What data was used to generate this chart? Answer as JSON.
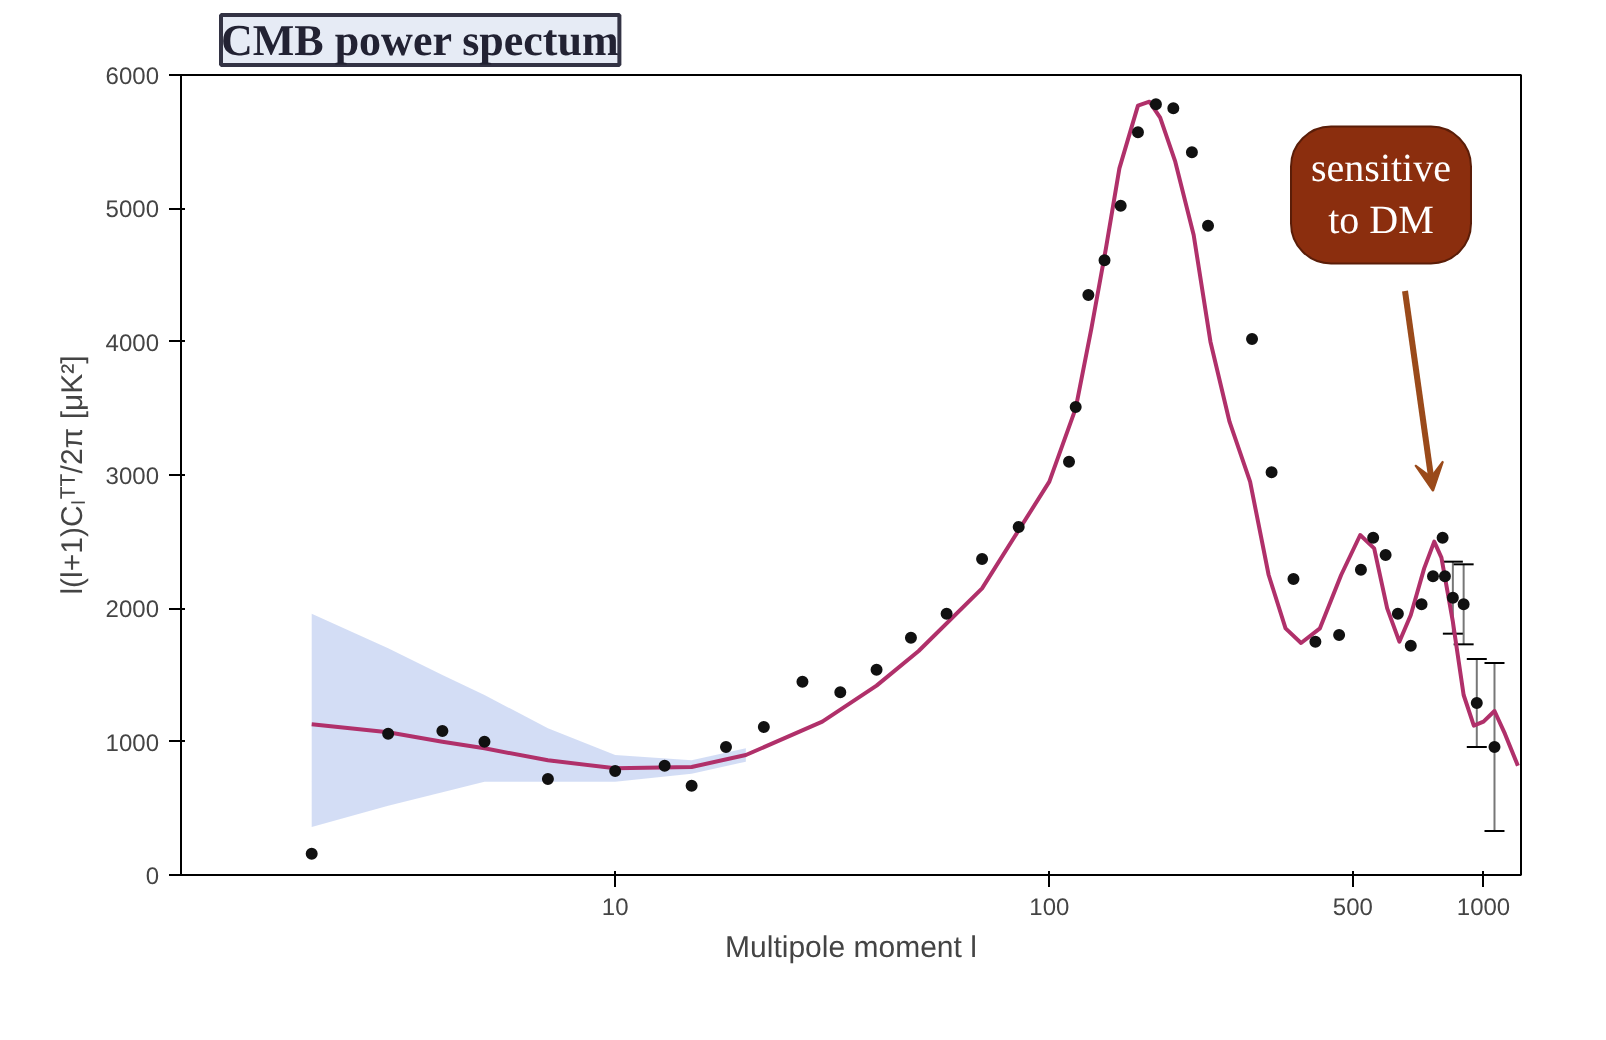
{
  "chart_data": {
    "type": "scatter",
    "title": "CMB power spectum",
    "xlabel": "Multipole moment l",
    "ylabel": "l(l+1)Cₗᵀᵀ/2π [μK²]",
    "log": "x",
    "xlim": [
      1,
      1220
    ],
    "xticks": [
      10,
      100,
      500,
      1000
    ],
    "ylim": [
      0,
      6000
    ],
    "yticks": [
      0,
      1000,
      2000,
      3000,
      4000,
      5000,
      6000
    ],
    "grid": false,
    "marker": "circle",
    "annotations": [
      "sensitive to DM"
    ],
    "series": [
      {
        "type": "line",
        "color": "#b0306a",
        "line_style": "solid",
        "marker": "none",
        "x": [
          2,
          3,
          4,
          5,
          7,
          10,
          15,
          20,
          30,
          40,
          50,
          70,
          100,
          115,
          125,
          135,
          145,
          160,
          170,
          180,
          195,
          215,
          235,
          260,
          290,
          320,
          350,
          380,
          420,
          470,
          520,
          560,
          600,
          640,
          680,
          730,
          770,
          800,
          850,
          900,
          950,
          1000,
          1060,
          1120,
          1200
        ],
        "values": [
          1130,
          1070,
          1000,
          950,
          860,
          800,
          810,
          900,
          1150,
          1420,
          1680,
          2150,
          2950,
          3500,
          4100,
          4700,
          5300,
          5770,
          5800,
          5680,
          5350,
          4800,
          4000,
          3400,
          2950,
          2250,
          1850,
          1740,
          1850,
          2250,
          2550,
          2450,
          2000,
          1750,
          1950,
          2300,
          2500,
          2380,
          1900,
          1350,
          1120,
          1150,
          1230,
          1060,
          820
        ],
        "lower": [
          360,
          520,
          620,
          700,
          700,
          700,
          760,
          850,
          null,
          null,
          null,
          null,
          null,
          null,
          null,
          null,
          null,
          null,
          null,
          null,
          null,
          null,
          null,
          null,
          null,
          null,
          null,
          null,
          null,
          null,
          null,
          null,
          null,
          null,
          null,
          null,
          null,
          null,
          null,
          null,
          null,
          null,
          null,
          null,
          null
        ],
        "upper": [
          1960,
          1700,
          1500,
          1350,
          1100,
          900,
          860,
          950,
          null,
          null,
          null,
          null,
          null,
          null,
          null,
          null,
          null,
          null,
          null,
          null,
          null,
          null,
          null,
          null,
          null,
          null,
          null,
          null,
          null,
          null,
          null,
          null,
          null,
          null,
          null,
          null,
          null,
          null,
          null,
          null,
          null,
          null,
          null,
          null,
          null
        ]
      },
      {
        "color": "#111111",
        "x": [
          2,
          3,
          4,
          5,
          7,
          10,
          13,
          15,
          18,
          22,
          27,
          33,
          40,
          48,
          58,
          70,
          85,
          111,
          115,
          123,
          134,
          146,
          160,
          176,
          193,
          213,
          232,
          293,
          325,
          365,
          410,
          465,
          522,
          557,
          595,
          635,
          680,
          720,
          765,
          805,
          815,
          850,
          900,
          965,
          1060
        ],
        "values": [
          160,
          1060,
          1080,
          1000,
          720,
          780,
          820,
          670,
          960,
          1110,
          1450,
          1370,
          1540,
          1780,
          1960,
          2370,
          2610,
          3100,
          3510,
          4350,
          4610,
          5020,
          5570,
          5780,
          5750,
          5420,
          4870,
          4020,
          3020,
          2220,
          1750,
          1800,
          2290,
          2530,
          2400,
          1960,
          1720,
          2030,
          2240,
          2530,
          2240,
          2080,
          2030,
          1290,
          960
        ],
        "errors": [
          null,
          null,
          null,
          null,
          null,
          null,
          null,
          null,
          null,
          null,
          null,
          null,
          null,
          null,
          null,
          null,
          null,
          null,
          null,
          null,
          null,
          null,
          null,
          null,
          null,
          null,
          null,
          null,
          null,
          null,
          null,
          null,
          null,
          null,
          null,
          null,
          null,
          null,
          null,
          null,
          null,
          270,
          300,
          330,
          630
        ]
      }
    ]
  }
}
